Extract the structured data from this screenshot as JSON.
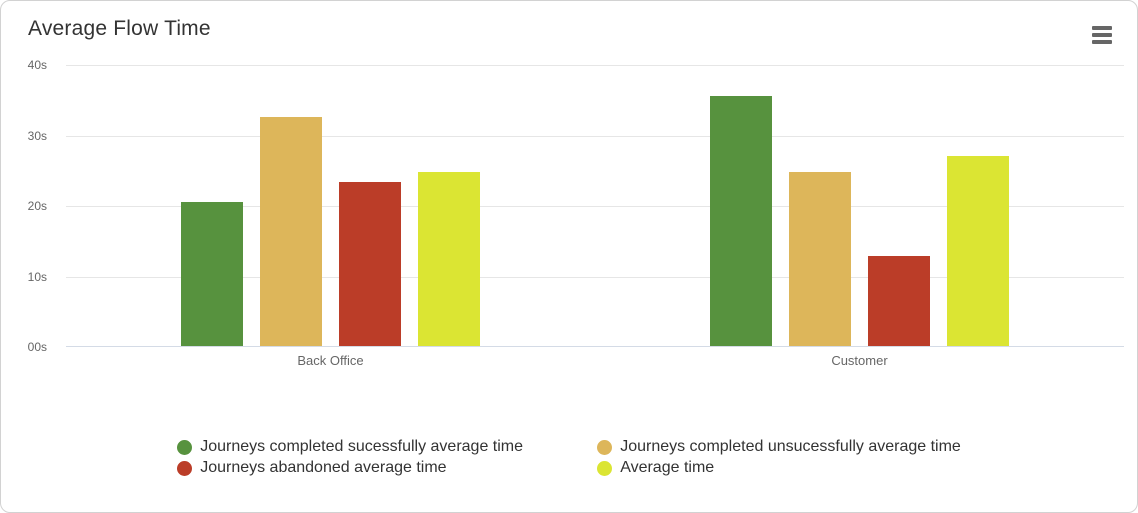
{
  "chart_data": {
    "type": "bar",
    "title": "Average Flow Time",
    "categories": [
      "Back Office",
      "Customer"
    ],
    "series": [
      {
        "name": "Journeys completed sucessfully average time",
        "color": "#57923E",
        "values": [
          20.4,
          35.5
        ]
      },
      {
        "name": "Journeys completed unsucessfully average time",
        "color": "#DDB65A",
        "values": [
          32.5,
          24.7
        ]
      },
      {
        "name": "Journeys abandoned average time",
        "color": "#BB3D28",
        "values": [
          23.3,
          12.8
        ]
      },
      {
        "name": "Average time",
        "color": "#DBE533",
        "values": [
          24.7,
          27.0
        ]
      }
    ],
    "xlabel": "",
    "ylabel": "",
    "ylim": [
      0,
      40
    ],
    "yticks": [
      {
        "value": 40,
        "label": "40s"
      },
      {
        "value": 30,
        "label": "30s"
      },
      {
        "value": 20,
        "label": "20s"
      },
      {
        "value": 10,
        "label": "10s"
      },
      {
        "value": 0,
        "label": "00s"
      }
    ],
    "grid": true,
    "legend_position": "bottom-center",
    "legend_columns": 2
  },
  "icons": {
    "context_menu": "hamburger-icon"
  },
  "colors": {
    "card_border": "#d2d2d2",
    "gridline": "#e6e6e6",
    "axis_line": "#d4dbe6",
    "title_text": "#333333",
    "axis_label_text": "#666666",
    "legend_text": "#333333",
    "menu_icon": "#666666",
    "background": "#ffffff"
  }
}
